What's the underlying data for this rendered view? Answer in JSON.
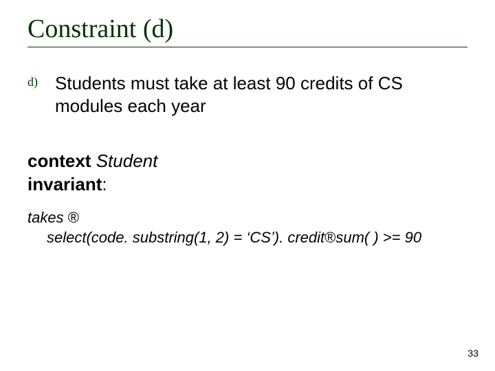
{
  "title": "Constraint (d)",
  "bullet": {
    "marker": "d)",
    "text": "Students must take at least 90 credits of CS modules each year"
  },
  "context": {
    "kw_context": "context",
    "subject": "Student",
    "kw_invariant": "invariant",
    "colon": ":"
  },
  "expr": {
    "line1_a": "takes ",
    "arrow": "®",
    "line2_a": "select",
    "line2_b": "(code. substring(1, 2) = ‘CS’). credit",
    "line2_c": "sum( ) >= 90"
  },
  "page_number": "33",
  "colors": {
    "title": "#003300",
    "text": "#000000",
    "background": "#ffffff"
  }
}
